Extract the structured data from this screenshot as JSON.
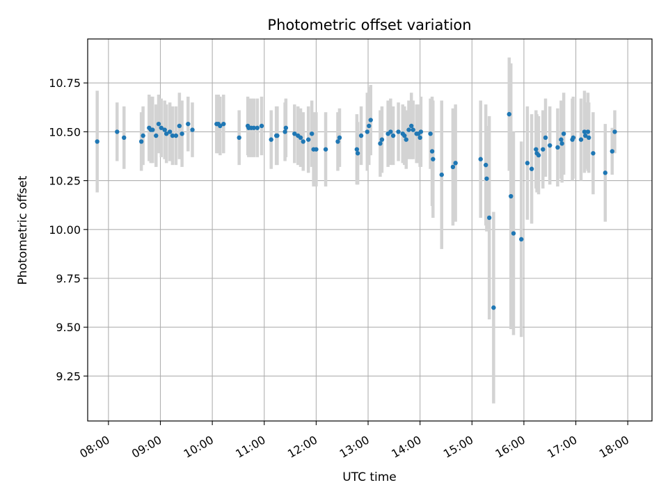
{
  "chart_data": {
    "type": "scatter",
    "title": "Photometric offset variation",
    "xlabel": "UTC time",
    "ylabel": "Photometric offset",
    "xlim": [
      "07:36",
      "18:28"
    ],
    "ylim": [
      9.02,
      10.975
    ],
    "x_ticks": [
      "08:00",
      "09:00",
      "10:00",
      "11:00",
      "12:00",
      "13:00",
      "14:00",
      "15:00",
      "16:00",
      "17:00",
      "18:00"
    ],
    "y_ticks": [
      9.25,
      9.5,
      9.75,
      10.0,
      10.25,
      10.5,
      10.75
    ],
    "y_tick_labels": [
      "9.25",
      "9.50",
      "9.75",
      "10.00",
      "10.25",
      "10.50",
      "10.75"
    ],
    "grid": true,
    "colors": {
      "point": "#1f77b4",
      "errorbar": "#d3d3d3",
      "grid": "#b0b0b0",
      "axis": "#000000"
    },
    "x": [
      "07:47",
      "08:10",
      "08:18",
      "08:38",
      "08:40",
      "08:47",
      "08:49",
      "08:51",
      "08:55",
      "08:58",
      "09:01",
      "09:05",
      "09:07",
      "09:11",
      "09:14",
      "09:18",
      "09:22",
      "09:25",
      "09:32",
      "09:37",
      "10:05",
      "10:07",
      "10:09",
      "10:13",
      "10:31",
      "10:41",
      "10:42",
      "10:45",
      "10:48",
      "10:52",
      "10:57",
      "11:08",
      "11:14",
      "11:15",
      "11:24",
      "11:25",
      "11:35",
      "11:39",
      "11:42",
      "11:45",
      "11:51",
      "11:55",
      "11:57",
      "12:00",
      "12:11",
      "12:25",
      "12:27",
      "12:47",
      "12:48",
      "12:52",
      "12:59",
      "13:01",
      "13:03",
      "13:14",
      "13:16",
      "13:23",
      "13:26",
      "13:29",
      "13:35",
      "13:40",
      "13:42",
      "13:44",
      "13:47",
      "13:50",
      "13:52",
      "13:56",
      "13:58",
      "14:00",
      "14:01",
      "14:12",
      "14:14",
      "14:15",
      "14:25",
      "14:38",
      "14:41",
      "15:10",
      "15:16",
      "15:17",
      "15:20",
      "15:25",
      "15:43",
      "15:45",
      "15:48",
      "15:57",
      "16:04",
      "16:09",
      "16:14",
      "16:15",
      "16:17",
      "16:22",
      "16:25",
      "16:30",
      "16:39",
      "16:43",
      "16:44",
      "16:46",
      "16:56",
      "16:57",
      "17:06",
      "17:10",
      "17:11",
      "17:14",
      "17:15",
      "17:20",
      "17:34",
      "17:42",
      "17:45"
    ],
    "y": [
      10.45,
      10.5,
      10.47,
      10.45,
      10.48,
      10.52,
      10.51,
      10.51,
      10.48,
      10.54,
      10.52,
      10.51,
      10.49,
      10.5,
      10.48,
      10.48,
      10.53,
      10.49,
      10.54,
      10.51,
      10.54,
      10.54,
      10.53,
      10.54,
      10.47,
      10.53,
      10.52,
      10.52,
      10.52,
      10.52,
      10.53,
      10.46,
      10.48,
      10.48,
      10.5,
      10.52,
      10.49,
      10.48,
      10.47,
      10.45,
      10.46,
      10.49,
      10.41,
      10.41,
      10.41,
      10.45,
      10.47,
      10.41,
      10.39,
      10.48,
      10.5,
      10.53,
      10.56,
      10.44,
      10.46,
      10.49,
      10.5,
      10.48,
      10.5,
      10.49,
      10.48,
      10.46,
      10.51,
      10.53,
      10.51,
      10.49,
      10.49,
      10.47,
      10.5,
      10.49,
      10.4,
      10.36,
      10.28,
      10.32,
      10.34,
      10.36,
      10.33,
      10.26,
      10.06,
      9.6,
      10.59,
      10.17,
      9.98,
      9.95,
      10.34,
      10.31,
      10.41,
      10.39,
      10.38,
      10.41,
      10.47,
      10.43,
      10.42,
      10.46,
      10.44,
      10.49,
      10.46,
      10.47,
      10.46,
      10.5,
      10.48,
      10.5,
      10.47,
      10.39,
      10.29,
      10.4,
      10.5
    ],
    "err": [
      0.26,
      0.15,
      0.16,
      0.15,
      0.15,
      0.17,
      0.17,
      0.17,
      0.16,
      0.15,
      0.15,
      0.15,
      0.15,
      0.15,
      0.15,
      0.15,
      0.17,
      0.17,
      0.14,
      0.14,
      0.15,
      0.15,
      0.15,
      0.15,
      0.14,
      0.15,
      0.15,
      0.15,
      0.15,
      0.15,
      0.15,
      0.15,
      0.15,
      0.15,
      0.15,
      0.15,
      0.15,
      0.15,
      0.15,
      0.15,
      0.17,
      0.17,
      0.19,
      0.19,
      0.19,
      0.15,
      0.15,
      0.18,
      0.16,
      0.15,
      0.2,
      0.2,
      0.18,
      0.17,
      0.17,
      0.17,
      0.17,
      0.15,
      0.15,
      0.15,
      0.15,
      0.15,
      0.15,
      0.17,
      0.15,
      0.15,
      0.15,
      0.15,
      0.18,
      0.18,
      0.28,
      0.3,
      0.38,
      0.3,
      0.3,
      0.3,
      0.31,
      0.27,
      0.52,
      0.49,
      0.29,
      0.68,
      0.52,
      0.5,
      0.29,
      0.28,
      0.2,
      0.2,
      0.2,
      0.2,
      0.2,
      0.2,
      0.2,
      0.2,
      0.2,
      0.21,
      0.21,
      0.21,
      0.21,
      0.21,
      0.17,
      0.2,
      0.18,
      0.21,
      0.25,
      0.12,
      0.11
    ]
  }
}
